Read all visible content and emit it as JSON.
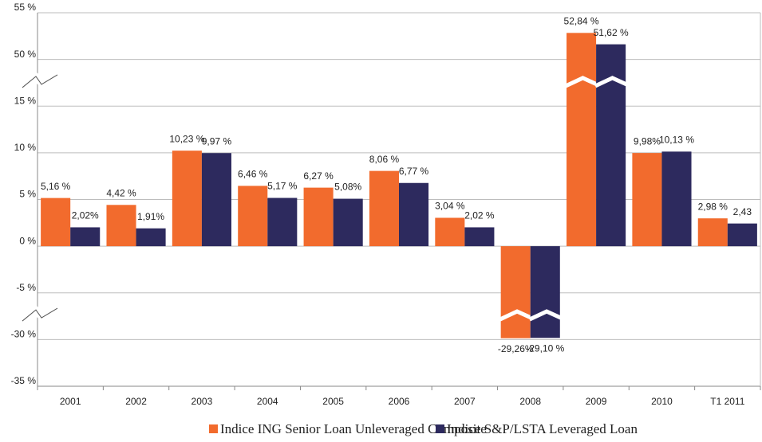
{
  "chart_data": {
    "type": "bar",
    "categories": [
      "2001",
      "2002",
      "2003",
      "2004",
      "2005",
      "2006",
      "2007",
      "2008",
      "2009",
      "2010",
      "T1 2011"
    ],
    "series": [
      {
        "name": "Indice ING Senior Loan Unleveraged Composite",
        "color": "#f26b2d",
        "values": [
          5.16,
          4.42,
          10.23,
          6.46,
          6.27,
          8.06,
          3.04,
          -29.26,
          52.84,
          9.98,
          2.98
        ],
        "value_labels": [
          "5,16 %",
          "4,42 %",
          "10,23 %",
          "6,46 %",
          "6,27 %",
          "8,06 %",
          "3,04 %",
          "-29,26%",
          "52,84 %",
          "9,98%",
          "2,98 %"
        ]
      },
      {
        "name": "Indice S&P/LSTA Leveraged Loan",
        "color": "#2d2a5e",
        "values": [
          2.02,
          1.91,
          9.97,
          5.17,
          5.08,
          6.77,
          2.02,
          -29.1,
          51.62,
          10.13,
          2.43
        ],
        "value_labels": [
          "2,02%",
          "1,91%",
          "9,97 %",
          "5,17 %",
          "5,08%",
          "6,77 %",
          "2,02 %",
          "-29,10 %",
          "51,62 %",
          "10,13 %",
          "2,43"
        ]
      }
    ],
    "ylim": [
      -35,
      55
    ],
    "yticks": [
      {
        "value": -35,
        "label": "-35 %"
      },
      {
        "value": -30,
        "label": "-30 %"
      },
      {
        "value": -5,
        "label": "-5 %"
      },
      {
        "value": 0,
        "label": "0 %"
      },
      {
        "value": 5,
        "label": "5 %"
      },
      {
        "value": 10,
        "label": "10 %"
      },
      {
        "value": 15,
        "label": "15 %"
      },
      {
        "value": 50,
        "label": "50 %"
      },
      {
        "value": 55,
        "label": "55 %"
      }
    ],
    "axis_breaks": [
      [
        -30,
        -5
      ],
      [
        15,
        50
      ]
    ],
    "grid": true,
    "legend": "bottom"
  }
}
